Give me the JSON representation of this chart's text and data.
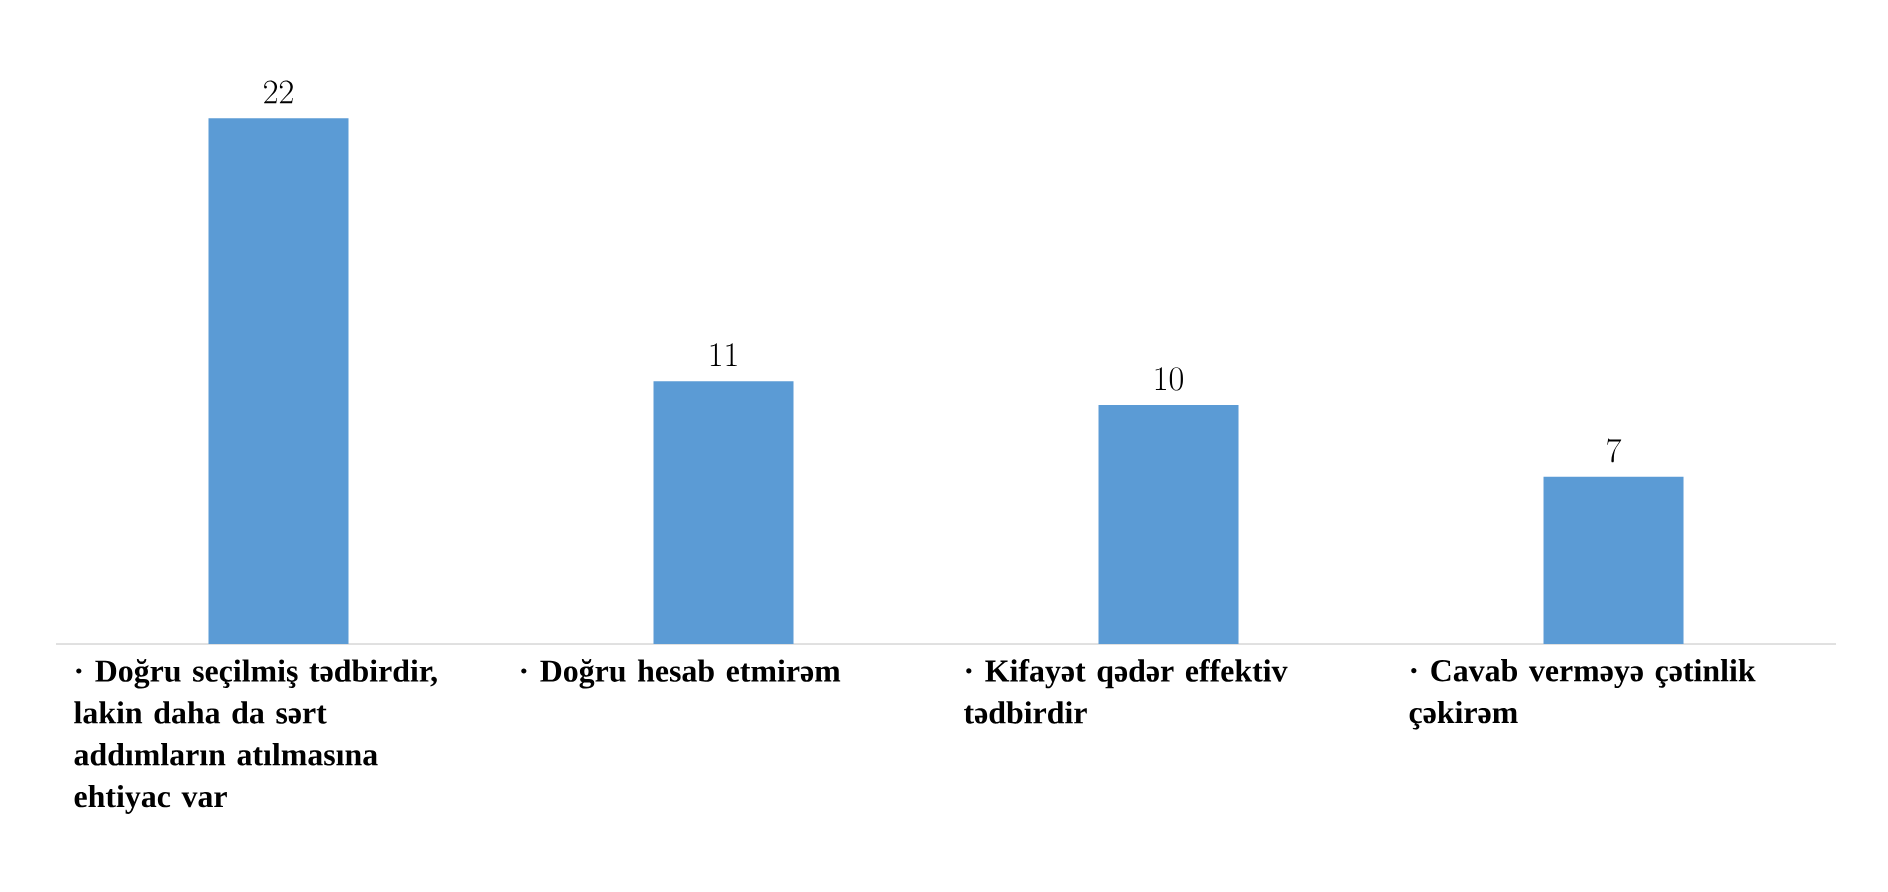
{
  "chart_data": {
    "type": "bar",
    "categories": [
      "·      Doğru seçilmiş tədbirdir,  lakin daha da sərt addımların atılmasına ehtiyac var",
      "·      Doğru hesab etmirəm",
      "·      Kifayət qədər effektiv tədbirdir",
      "·      Cavab verməyə çətinlik çəkirəm"
    ],
    "values": [
      22,
      11,
      10,
      7
    ],
    "color": "#5b9bd5",
    "data_labels": true
  }
}
